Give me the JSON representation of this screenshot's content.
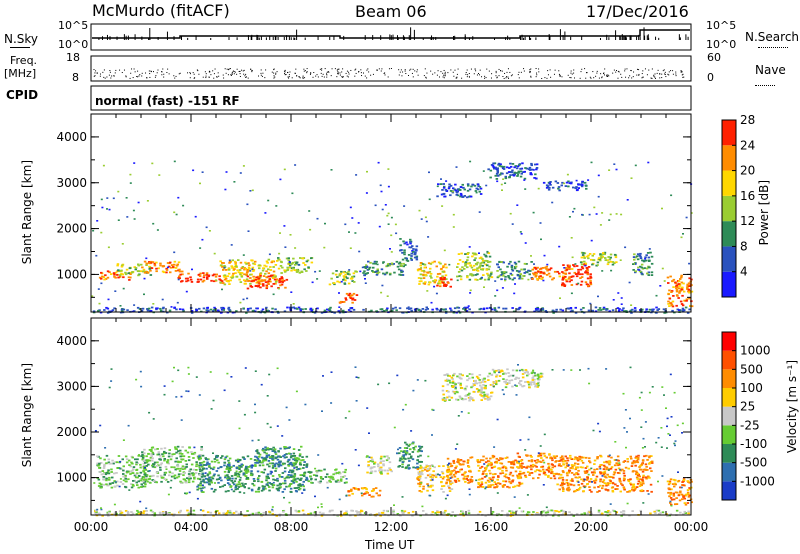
{
  "header": {
    "station": "McMurdo (fitACF)",
    "beam": "Beam 06",
    "date": "17/Dec/2016"
  },
  "strip": {
    "nsky_label": "N.Sky",
    "nsearch_label": "N.Search",
    "noise_ticks": [
      "10^5",
      "10^0"
    ],
    "freq_label": "Freq.",
    "freq_unit": "[MHz]",
    "freq_ticks": [
      "18",
      "8"
    ],
    "nave_label": "Nave",
    "nave_ticks": [
      "60",
      "0"
    ],
    "cpid_label": "CPID",
    "cpid_text": "normal (fast) -151 RF"
  },
  "colorbars": {
    "power": {
      "label": "Power [dB]",
      "ticks": [
        "4",
        "8",
        "12",
        "16",
        "20",
        "24",
        "28"
      ],
      "colors": [
        "#1a1aff",
        "#2a52be",
        "#2e8b57",
        "#9acd32",
        "#ffd700",
        "#ff8c00",
        "#ff2000"
      ]
    },
    "velocity": {
      "label": "Velocity [m s⁻¹]",
      "ticks": [
        "1000",
        "500",
        "100",
        "25",
        "-25",
        "-100",
        "-500",
        "-1000"
      ],
      "colors": [
        "#1a3cc8",
        "#2e6fb0",
        "#2e8b57",
        "#66cc33",
        "#c8c8c8",
        "#ffcc00",
        "#ff8c00",
        "#ff5000",
        "#ff0000"
      ]
    }
  },
  "chart_data": [
    {
      "type": "heatmap",
      "name": "",
      "ylabel": "Slant Range [km]",
      "xlabel": "",
      "ylim": [
        180,
        4500
      ],
      "xlim": [
        "00:00",
        "24:00"
      ],
      "yticks": [
        "1000",
        "2000",
        "3000",
        "4000"
      ],
      "xticks": [
        "00:00",
        "04:00",
        "08:00",
        "12:00",
        "16:00",
        "20:00",
        "00:00"
      ],
      "values": [
        {
          "t0": 0.3,
          "t1": 1.6,
          "r0": 900,
          "r1": 1100,
          "level": 5
        },
        {
          "t0": 1.0,
          "t1": 2.4,
          "r0": 1000,
          "r1": 1250,
          "level": 3
        },
        {
          "t0": 2.0,
          "t1": 3.6,
          "r0": 1050,
          "r1": 1300,
          "level": 5
        },
        {
          "t0": 3.4,
          "t1": 5.2,
          "r0": 850,
          "r1": 1050,
          "level": 6
        },
        {
          "t0": 5.1,
          "t1": 7.4,
          "r0": 800,
          "r1": 1350,
          "level": 4
        },
        {
          "t0": 6.2,
          "t1": 7.8,
          "r0": 700,
          "r1": 1000,
          "level": 6
        },
        {
          "t0": 7.4,
          "t1": 8.8,
          "r0": 1050,
          "r1": 1400,
          "level": 3
        },
        {
          "t0": 9.5,
          "t1": 10.6,
          "r0": 800,
          "r1": 1100,
          "level": 3
        },
        {
          "t0": 9.8,
          "t1": 10.6,
          "r0": 400,
          "r1": 600,
          "level": 6
        },
        {
          "t0": 10.8,
          "t1": 12.6,
          "r0": 1000,
          "r1": 1300,
          "level": 2
        },
        {
          "t0": 12.3,
          "t1": 13.0,
          "r0": 1300,
          "r1": 1800,
          "level": 1
        },
        {
          "t0": 13.0,
          "t1": 14.2,
          "r0": 800,
          "r1": 1300,
          "level": 4
        },
        {
          "t0": 13.8,
          "t1": 14.4,
          "r0": 750,
          "r1": 950,
          "level": 6
        },
        {
          "t0": 14.6,
          "t1": 16.0,
          "r0": 900,
          "r1": 1500,
          "level": 3
        },
        {
          "t0": 16.2,
          "t1": 17.6,
          "r0": 900,
          "r1": 1300,
          "level": 2
        },
        {
          "t0": 17.6,
          "t1": 19.2,
          "r0": 900,
          "r1": 1200,
          "level": 5
        },
        {
          "t0": 18.8,
          "t1": 20.0,
          "r0": 750,
          "r1": 1250,
          "level": 6
        },
        {
          "t0": 19.5,
          "t1": 21.0,
          "r0": 1200,
          "r1": 1500,
          "level": 3
        },
        {
          "t0": 21.6,
          "t1": 22.4,
          "r0": 1000,
          "r1": 1500,
          "level": 2
        },
        {
          "t0": 23.0,
          "t1": 24.0,
          "r0": 300,
          "r1": 1000,
          "level": 5
        },
        {
          "t0": 13.8,
          "t1": 15.6,
          "r0": 2700,
          "r1": 3000,
          "level": 1
        },
        {
          "t0": 15.8,
          "t1": 17.8,
          "r0": 3100,
          "r1": 3450,
          "level": 1
        },
        {
          "t0": 18.0,
          "t1": 19.8,
          "r0": 2850,
          "r1": 3050,
          "level": 1
        },
        {
          "t0": 0.0,
          "t1": 24.0,
          "r0": 180,
          "r1": 300,
          "level": 1
        }
      ]
    },
    {
      "type": "heatmap",
      "name": "",
      "ylabel": "Slant Range [km]",
      "xlabel": "Time UT",
      "ylim": [
        180,
        4500
      ],
      "xlim": [
        "00:00",
        "24:00"
      ],
      "yticks": [
        "1000",
        "2000",
        "3000",
        "4000"
      ],
      "xticks": [
        "00:00",
        "04:00",
        "08:00",
        "12:00",
        "16:00",
        "20:00",
        "00:00"
      ],
      "values": [
        {
          "t0": 0.2,
          "t1": 2.2,
          "r0": 800,
          "r1": 1500,
          "level": 3
        },
        {
          "t0": 2.0,
          "t1": 4.4,
          "r0": 900,
          "r1": 1700,
          "level": 3
        },
        {
          "t0": 4.2,
          "t1": 8.6,
          "r0": 700,
          "r1": 1500,
          "level": 2
        },
        {
          "t0": 6.5,
          "t1": 8.4,
          "r0": 1300,
          "r1": 1700,
          "level": 2
        },
        {
          "t0": 8.6,
          "t1": 10.2,
          "r0": 900,
          "r1": 1200,
          "level": 3
        },
        {
          "t0": 10.2,
          "t1": 11.6,
          "r0": 600,
          "r1": 800,
          "level": 6
        },
        {
          "t0": 11.0,
          "t1": 12.0,
          "r0": 1100,
          "r1": 1500,
          "level": 4
        },
        {
          "t0": 12.2,
          "t1": 13.2,
          "r0": 1200,
          "r1": 1800,
          "level": 2
        },
        {
          "t0": 13.0,
          "t1": 14.4,
          "r0": 700,
          "r1": 1300,
          "level": 5
        },
        {
          "t0": 14.2,
          "t1": 15.2,
          "r0": 900,
          "r1": 1500,
          "level": 6
        },
        {
          "t0": 15.4,
          "t1": 17.2,
          "r0": 800,
          "r1": 1500,
          "level": 6
        },
        {
          "t0": 17.0,
          "t1": 18.6,
          "r0": 1000,
          "r1": 1550,
          "level": 6
        },
        {
          "t0": 18.6,
          "t1": 21.2,
          "r0": 700,
          "r1": 1500,
          "level": 6
        },
        {
          "t0": 21.2,
          "t1": 22.4,
          "r0": 700,
          "r1": 1500,
          "level": 6
        },
        {
          "t0": 23.0,
          "t1": 24.0,
          "r0": 400,
          "r1": 1000,
          "level": 6
        },
        {
          "t0": 14.0,
          "t1": 16.0,
          "r0": 2700,
          "r1": 3300,
          "level": 4
        },
        {
          "t0": 16.0,
          "t1": 18.0,
          "r0": 3000,
          "r1": 3400,
          "level": 4
        },
        {
          "t0": 0.0,
          "t1": 24.0,
          "r0": 180,
          "r1": 300,
          "level": 4
        }
      ]
    }
  ]
}
